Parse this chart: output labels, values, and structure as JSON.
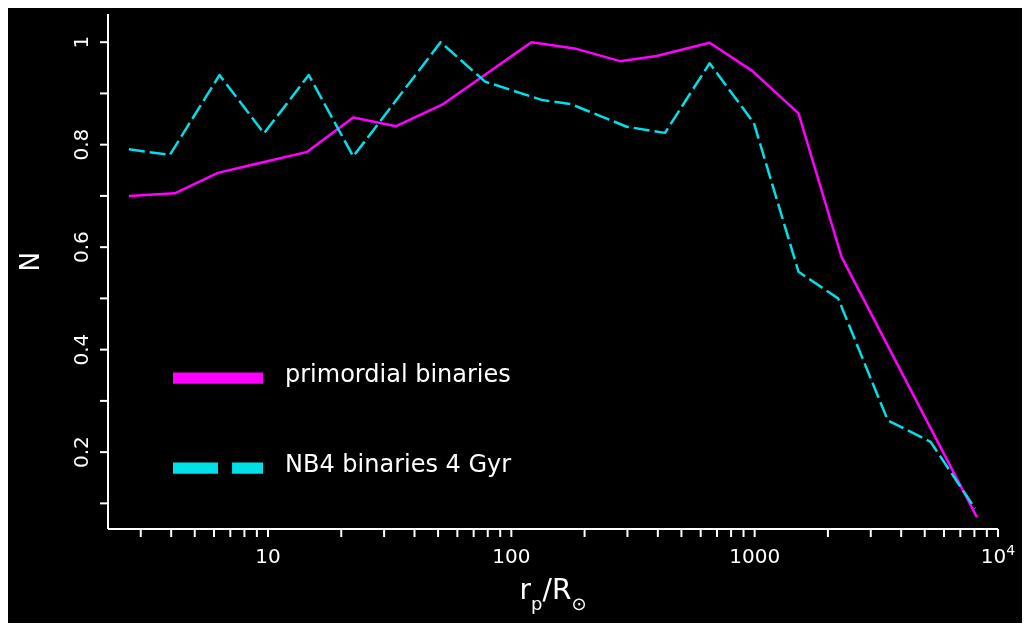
{
  "chart_data": {
    "type": "line",
    "xlabel": "r$_{p}$/R$_{⊙}$",
    "ylabel": "N",
    "log": "x",
    "grid": false,
    "legend": "left",
    "marker": "none",
    "xlim": [
      2.2,
      10000
    ],
    "ylim": [
      0.05,
      1.055
    ],
    "xticks": [
      {
        "value": 3,
        "label": null
      },
      {
        "value": 4,
        "label": null
      },
      {
        "value": 5,
        "label": null
      },
      {
        "value": 6,
        "label": null
      },
      {
        "value": 7,
        "label": null
      },
      {
        "value": 8,
        "label": null
      },
      {
        "value": 9,
        "label": null
      },
      10,
      {
        "value": 20,
        "label": null
      },
      {
        "value": 30,
        "label": null
      },
      {
        "value": 40,
        "label": null
      },
      {
        "value": 50,
        "label": null
      },
      {
        "value": 60,
        "label": null
      },
      {
        "value": 70,
        "label": null
      },
      {
        "value": 80,
        "label": null
      },
      {
        "value": 90,
        "label": null
      },
      100,
      {
        "value": 200,
        "label": null
      },
      {
        "value": 300,
        "label": null
      },
      {
        "value": 400,
        "label": null
      },
      {
        "value": 500,
        "label": null
      },
      {
        "value": 600,
        "label": null
      },
      {
        "value": 700,
        "label": null
      },
      {
        "value": 800,
        "label": null
      },
      {
        "value": 900,
        "label": null
      },
      1000,
      {
        "value": 2000,
        "label": null
      },
      {
        "value": 3000,
        "label": null
      },
      {
        "value": 4000,
        "label": null
      },
      {
        "value": 5000,
        "label": null
      },
      {
        "value": 6000,
        "label": null
      },
      {
        "value": 7000,
        "label": null
      },
      {
        "value": 8000,
        "label": null
      },
      {
        "value": 9000,
        "label": null
      },
      {
        "value": 10000,
        "label": "10$^{4}$"
      }
    ],
    "yticks": [
      {
        "value": 0.1,
        "label": null
      },
      0.2,
      {
        "value": 0.3,
        "label": null
      },
      0.4,
      {
        "value": 0.5,
        "label": null
      },
      0.6,
      {
        "value": 0.7,
        "label": null
      },
      0.8,
      {
        "value": 0.9,
        "label": null
      },
      1
    ],
    "series": [
      {
        "name": "primordial binaries",
        "color": "#ff00ff",
        "line_style": "solid",
        "x": [
          2.68,
          4.14,
          6.22,
          14.5,
          22.4,
          33.6,
          52,
          121,
          185,
          280,
          395,
          653,
          977,
          1514,
          2275,
          8190
        ],
        "values": [
          0.7,
          0.705,
          0.745,
          0.786,
          0.853,
          0.836,
          0.878,
          1.0,
          0.987,
          0.963,
          0.973,
          0.999,
          0.944,
          0.861,
          0.581,
          0.073
        ]
      },
      {
        "name": "NB4 binaries 4 Gyr",
        "color": "#00e0e8",
        "line_style": "dashed",
        "x": [
          2.68,
          3.95,
          6.32,
          9.63,
          14.7,
          22.4,
          51.2,
          78,
          134,
          176,
          298,
          428,
          653,
          993,
          1514,
          2203,
          3524,
          5284,
          8050
        ],
        "values": [
          0.791,
          0.78,
          0.936,
          0.822,
          0.936,
          0.777,
          1.0,
          0.923,
          0.887,
          0.879,
          0.835,
          0.823,
          0.959,
          0.842,
          0.552,
          0.5,
          0.262,
          0.22,
          0.09
        ]
      }
    ]
  }
}
